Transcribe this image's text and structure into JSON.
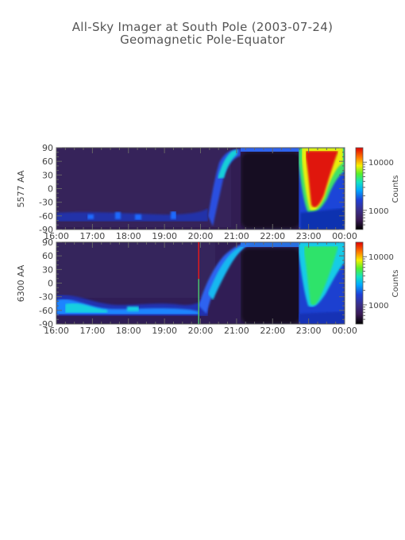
{
  "title": "All-Sky Imager at South Pole (2003-07-24)",
  "subtitle": "Geomagnetic Pole-Equator",
  "colors": {
    "scale": [
      "#000000",
      "#3a1a55",
      "#3a2f8a",
      "#1f3fd6",
      "#00a8ff",
      "#12e3c0",
      "#55f02a",
      "#f6f000",
      "#ff7a00",
      "#e00000"
    ],
    "marker_red": "#e31a1c",
    "marker_green": "#4cc26b"
  },
  "chart_data": [
    {
      "type": "heatmap",
      "ylabel": "5577 AA",
      "x_ticks": [
        "16:00",
        "17:00",
        "18:00",
        "19:00",
        "20:00",
        "21:00",
        "22:00",
        "23:00",
        "00:00"
      ],
      "y_ticks": [
        "90",
        "60",
        "30",
        "0",
        "-30",
        "-60",
        "-90"
      ],
      "xlim": [
        16,
        24
      ],
      "ylim": [
        -90,
        90
      ],
      "colorbar": {
        "label": "Counts",
        "ticks": [
          "10000",
          "1000"
        ],
        "range": [
          400,
          20000
        ],
        "log": true
      },
      "marker_hours": null
    },
    {
      "type": "heatmap",
      "ylabel": "6300 AA",
      "x_ticks": [
        "16:00",
        "17:00",
        "18:00",
        "19:00",
        "20:00",
        "21:00",
        "22:00",
        "23:00",
        "00:00"
      ],
      "y_ticks": [
        "90",
        "60",
        "30",
        "0",
        "-30",
        "-60",
        "-90"
      ],
      "xlim": [
        16,
        24
      ],
      "ylim": [
        -90,
        90
      ],
      "colorbar": {
        "label": "Counts",
        "ticks": [
          "10000",
          "1000"
        ],
        "range": [
          400,
          20000
        ],
        "log": true
      },
      "marker_hours": 19.95
    }
  ]
}
